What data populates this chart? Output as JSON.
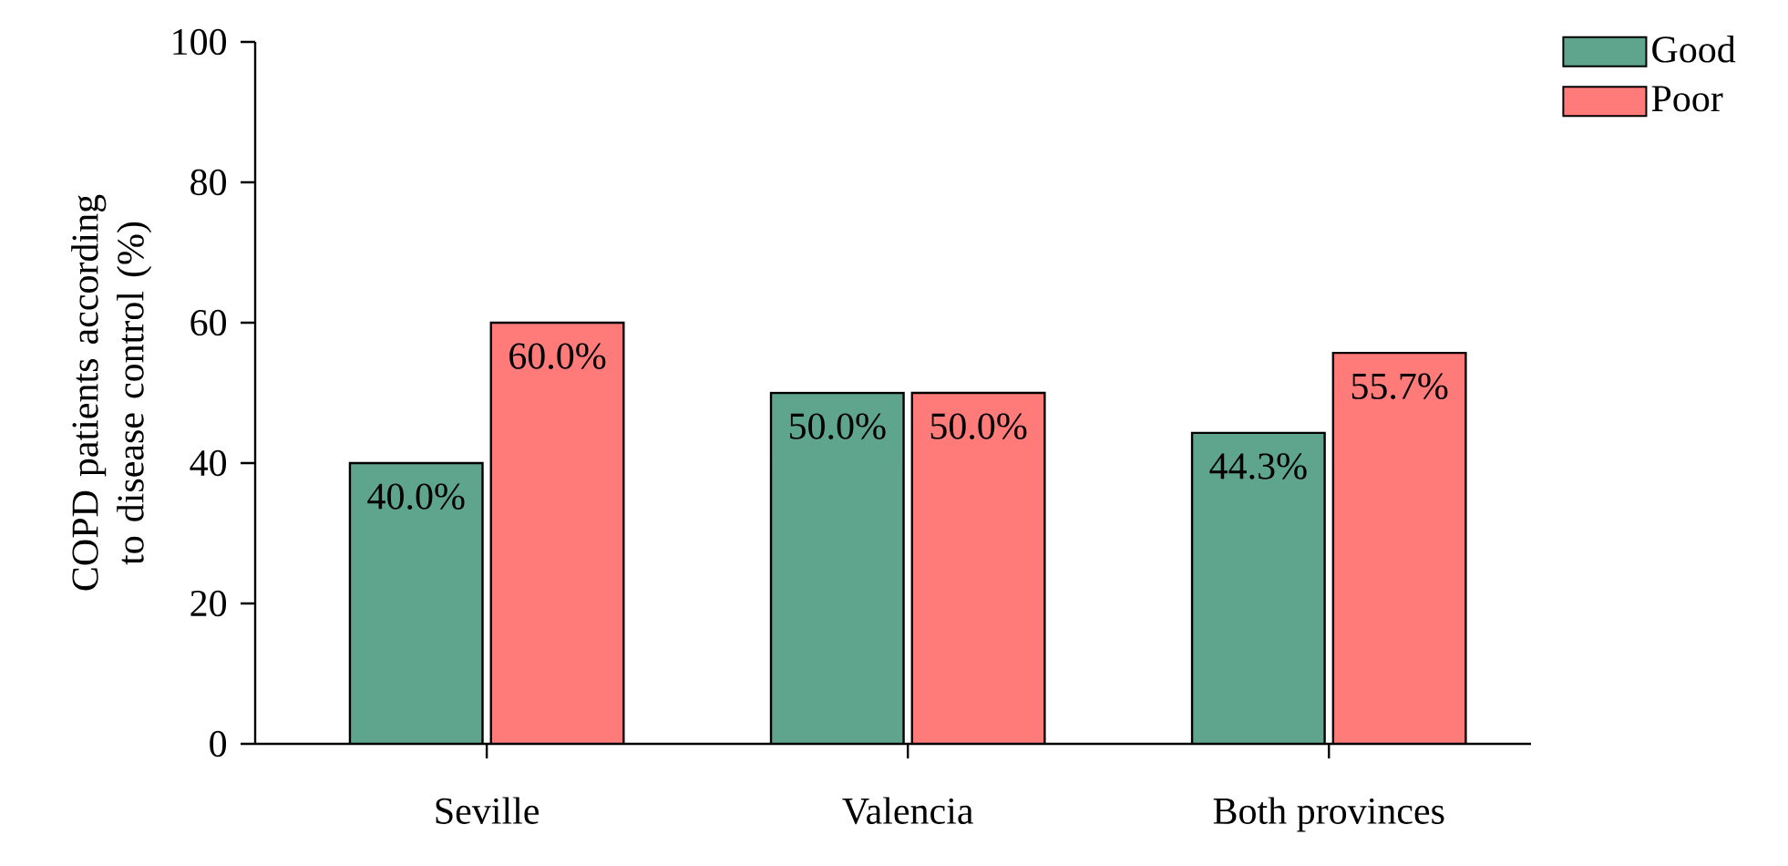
{
  "chart_data": {
    "type": "bar",
    "ylabel": "COPD patients according to disease control (%)",
    "categories": [
      "Seville",
      "Valencia",
      "Both provinces"
    ],
    "series": [
      {
        "name": "Good",
        "color": "#5fa48d",
        "values": [
          40.0,
          50.0,
          44.3
        ],
        "value_labels": [
          "40.0%",
          "50.0%",
          "44.3%"
        ]
      },
      {
        "name": "Poor",
        "color": "#fe7b7a",
        "values": [
          60.0,
          50.0,
          55.7
        ],
        "value_labels": [
          "60.0%",
          "50.0%",
          "55.7%"
        ]
      }
    ],
    "ylim": [
      0,
      100
    ],
    "yticks": [
      0,
      20,
      40,
      60,
      80,
      100
    ],
    "grid": false,
    "legend": "top right"
  }
}
